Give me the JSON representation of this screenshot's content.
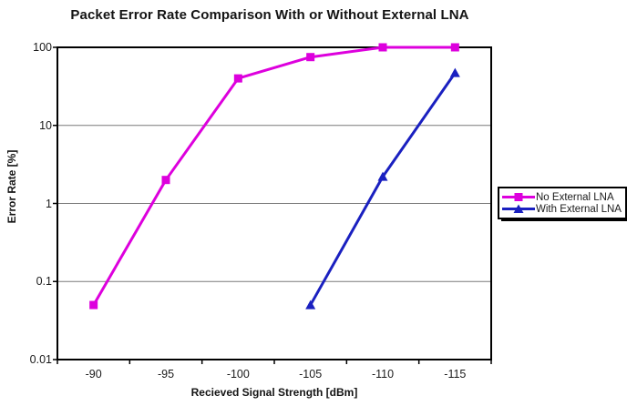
{
  "chart_data": {
    "type": "line",
    "title": "Packet Error Rate Comparison With or Without External LNA",
    "xlabel": "Recieved Signal Strength [dBm]",
    "ylabel": "Error Rate [%]",
    "x_categories": [
      "-90",
      "-95",
      "-100",
      "-105",
      "-110",
      "-115"
    ],
    "series": [
      {
        "name": "No External LNA",
        "color": "#DD00DD",
        "marker": "square",
        "values": [
          0.05,
          2,
          40,
          75,
          100,
          100
        ]
      },
      {
        "name": "With External LNA",
        "color": "#1A20C0",
        "marker": "triangle",
        "values": [
          null,
          null,
          null,
          0.05,
          2.2,
          47
        ]
      }
    ],
    "y_scale": "log",
    "ylim": [
      0.01,
      100
    ],
    "y_tick_labels": [
      "100",
      "10",
      "1",
      "0.1",
      "0.01"
    ],
    "grid": "horizontal-major",
    "gridline_color": "#7a7a7a",
    "axis_color": "#000000",
    "legend_position": "right"
  }
}
